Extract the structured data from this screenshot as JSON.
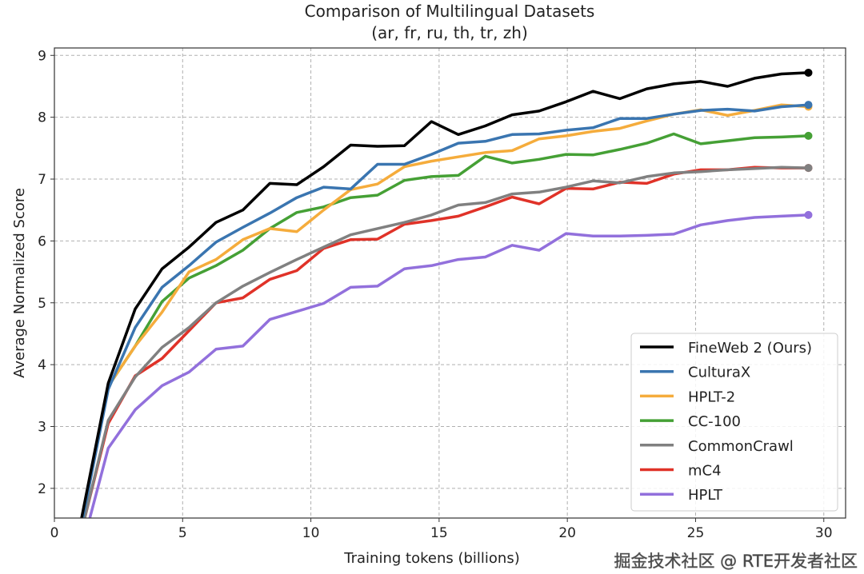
{
  "chart_data": {
    "type": "line",
    "title": "Comparison of Multilingual Datasets",
    "subtitle": "(ar, fr, ru, th, tr, zh)",
    "xlabel": "Training tokens (billions)",
    "ylabel": "Average Normalized Score",
    "xlim": [
      0,
      30.85
    ],
    "ylim": [
      1.52,
      9.12
    ],
    "xticks": [
      0,
      5,
      10,
      15,
      20,
      25,
      30
    ],
    "yticks": [
      2,
      3,
      4,
      5,
      6,
      7,
      8,
      9
    ],
    "grid": true,
    "legend_position": "bottom-right",
    "x": [
      1.05,
      2.1,
      3.15,
      4.2,
      5.25,
      6.3,
      7.35,
      8.4,
      9.45,
      10.5,
      11.55,
      12.6,
      13.65,
      14.7,
      15.75,
      16.8,
      17.85,
      18.9,
      19.95,
      21.0,
      22.05,
      23.1,
      24.15,
      25.2,
      26.25,
      27.3,
      28.35,
      29.4
    ],
    "series": [
      {
        "name": "FineWeb 2 (Ours)",
        "color": "#000000",
        "values": [
          1.5,
          3.7,
          4.9,
          5.55,
          5.9,
          6.3,
          6.5,
          6.93,
          6.91,
          7.2,
          7.55,
          7.53,
          7.54,
          7.93,
          7.72,
          7.86,
          8.04,
          8.1,
          8.25,
          8.42,
          8.3,
          8.46,
          8.54,
          8.58,
          8.5,
          8.63,
          8.7,
          8.72
        ]
      },
      {
        "name": "CulturaX",
        "color": "#3a75b0",
        "values": [
          1.4,
          3.6,
          4.6,
          5.25,
          5.6,
          5.98,
          6.22,
          6.45,
          6.7,
          6.87,
          6.84,
          7.24,
          7.24,
          7.4,
          7.58,
          7.61,
          7.72,
          7.73,
          7.79,
          7.83,
          7.98,
          7.98,
          8.05,
          8.11,
          8.13,
          8.1,
          8.17,
          8.2
        ]
      },
      {
        "name": "HPLT-2",
        "color": "#f5ac3c",
        "values": [
          1.4,
          3.65,
          4.3,
          4.85,
          5.5,
          5.7,
          6.02,
          6.2,
          6.15,
          6.5,
          6.83,
          6.92,
          7.2,
          7.29,
          7.36,
          7.43,
          7.46,
          7.65,
          7.7,
          7.77,
          7.82,
          7.94,
          8.05,
          8.12,
          8.03,
          8.11,
          8.2,
          8.17
        ]
      },
      {
        "name": "CC-100",
        "color": "#45a035",
        "values": [
          1.4,
          3.65,
          4.3,
          5.02,
          5.4,
          5.6,
          5.85,
          6.2,
          6.46,
          6.55,
          6.7,
          6.74,
          6.98,
          7.04,
          7.06,
          7.37,
          7.26,
          7.32,
          7.4,
          7.39,
          7.48,
          7.58,
          7.73,
          7.57,
          7.62,
          7.67,
          7.68,
          7.7
        ]
      },
      {
        "name": "CommonCrawl",
        "color": "#808080",
        "values": [
          1.3,
          3.1,
          3.8,
          4.28,
          4.6,
          5.0,
          5.27,
          5.49,
          5.7,
          5.9,
          6.1,
          6.2,
          6.3,
          6.42,
          6.58,
          6.62,
          6.76,
          6.79,
          6.87,
          6.97,
          6.94,
          7.04,
          7.1,
          7.12,
          7.15,
          7.17,
          7.19,
          7.18
        ]
      },
      {
        "name": "mC4",
        "color": "#e03228",
        "values": [
          1.3,
          3.05,
          3.82,
          4.1,
          4.55,
          5.0,
          5.08,
          5.38,
          5.52,
          5.88,
          6.02,
          6.03,
          6.27,
          6.33,
          6.4,
          6.55,
          6.71,
          6.6,
          6.85,
          6.84,
          6.95,
          6.93,
          7.08,
          7.15,
          7.15,
          7.19,
          7.18,
          7.18
        ]
      },
      {
        "name": "HPLT",
        "color": "#9270dc",
        "values": [
          1.0,
          2.65,
          3.27,
          3.66,
          3.88,
          4.25,
          4.3,
          4.73,
          4.86,
          4.99,
          5.25,
          5.27,
          5.55,
          5.6,
          5.7,
          5.74,
          5.93,
          5.85,
          6.12,
          6.08,
          6.08,
          6.09,
          6.11,
          6.26,
          6.33,
          6.38,
          6.4,
          6.42
        ]
      }
    ]
  },
  "watermark": "掘金技术社区 @ RTE开发者社区"
}
